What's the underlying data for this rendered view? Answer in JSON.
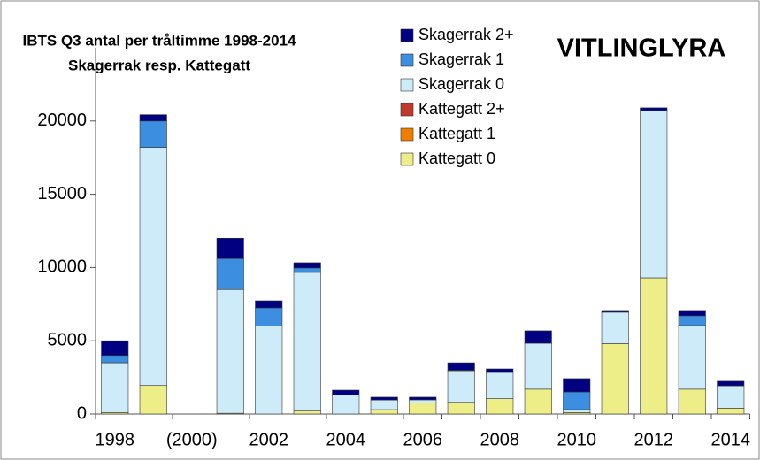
{
  "chart_data": {
    "type": "stacked_bar",
    "title": "IBTS Q3 antal per tråltimme 1998-2014",
    "subtitle": "Skagerrak resp. Kattegatt",
    "annotation": "VITLINGLYRA",
    "categories": [
      "1998",
      null,
      "(2000)",
      null,
      "2002",
      null,
      "2004",
      null,
      "2006",
      null,
      "2008",
      null,
      "2010",
      null,
      "2012",
      null,
      "2014"
    ],
    "series": [
      {
        "name": "Kattegatt 0",
        "color": "#eeee88",
        "values": [
          100,
          1950,
          0,
          50,
          0,
          200,
          0,
          300,
          750,
          800,
          1050,
          1700,
          100,
          4800,
          9300,
          1700,
          400
        ]
      },
      {
        "name": "Kattegatt 1",
        "color": "#f07f00",
        "values": [
          0,
          0,
          0,
          0,
          0,
          0,
          0,
          0,
          0,
          0,
          0,
          0,
          0,
          0,
          0,
          0,
          0
        ]
      },
      {
        "name": "Kattegatt 2+",
        "color": "#c0392b",
        "values": [
          0,
          0,
          0,
          0,
          0,
          0,
          0,
          0,
          0,
          0,
          0,
          0,
          0,
          0,
          0,
          0,
          0
        ]
      },
      {
        "name": "Skagerrak 0",
        "color": "#cdebf8",
        "values": [
          3400,
          16250,
          0,
          8450,
          6000,
          9470,
          1300,
          660,
          220,
          2160,
          1790,
          3130,
          200,
          2150,
          11420,
          4340,
          1530
        ]
      },
      {
        "name": "Skagerrak 1",
        "color": "#3c8fe0",
        "values": [
          500,
          1800,
          0,
          2110,
          1250,
          300,
          0,
          0,
          0,
          40,
          0,
          0,
          1210,
          0,
          0,
          670,
          0
        ]
      },
      {
        "name": "Skagerrak 2+",
        "color": "#000080",
        "values": [
          1000,
          430,
          0,
          1390,
          480,
          360,
          330,
          190,
          180,
          500,
          240,
          850,
          910,
          120,
          180,
          360,
          310
        ]
      }
    ],
    "ylim": [
      0,
      25000
    ],
    "yticks": [
      0,
      5000,
      10000,
      15000,
      20000
    ]
  }
}
